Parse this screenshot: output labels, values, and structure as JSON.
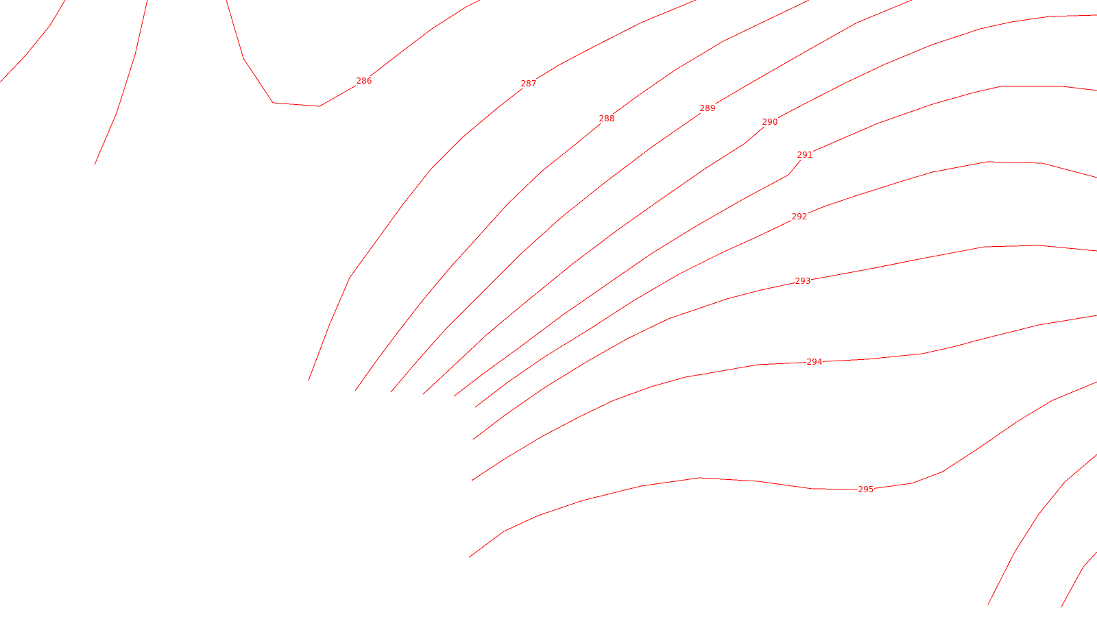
{
  "map": {
    "line_color": "#ff0000",
    "background_color": "#ffffff",
    "contours": [
      {
        "id": "c-a",
        "label": ""
      },
      {
        "id": "c-b",
        "label": ""
      },
      {
        "id": "c-286",
        "label": "286"
      },
      {
        "id": "c-287",
        "label": "287"
      },
      {
        "id": "c-288",
        "label": "288"
      },
      {
        "id": "c-289",
        "label": "289"
      },
      {
        "id": "c-290",
        "label": "290"
      },
      {
        "id": "c-291",
        "label": "291"
      },
      {
        "id": "c-292",
        "label": "292"
      },
      {
        "id": "c-293",
        "label": "293"
      },
      {
        "id": "c-294",
        "label": "294"
      },
      {
        "id": "c-295",
        "label": "295"
      },
      {
        "id": "c-c",
        "label": ""
      },
      {
        "id": "c-d",
        "label": ""
      }
    ]
  }
}
